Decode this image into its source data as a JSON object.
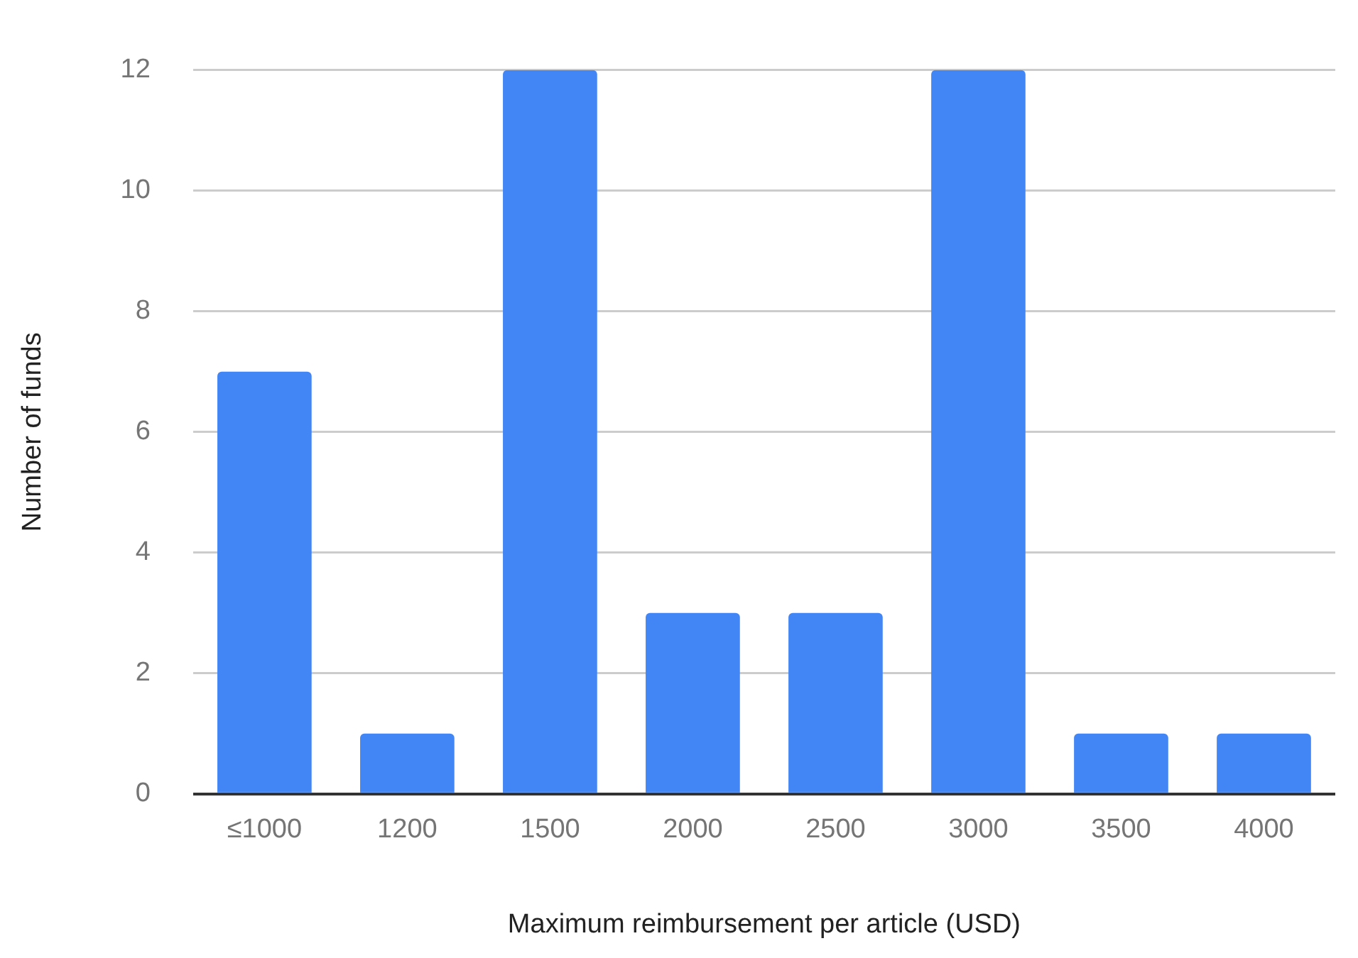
{
  "chart_data": {
    "type": "bar",
    "xlabel": "Maximum reimbursement per article (USD)",
    "ylabel": "Number of funds",
    "categories": [
      "≤1000",
      "1200",
      "1500",
      "2000",
      "2500",
      "3000",
      "3500",
      "4000"
    ],
    "values": [
      7,
      1,
      12,
      3,
      3,
      12,
      1,
      1
    ],
    "color": "#4285f4",
    "ylim": [
      0,
      12
    ],
    "yticks": [
      0,
      2,
      4,
      6,
      8,
      10,
      12
    ],
    "grid": "y",
    "legend": false
  }
}
